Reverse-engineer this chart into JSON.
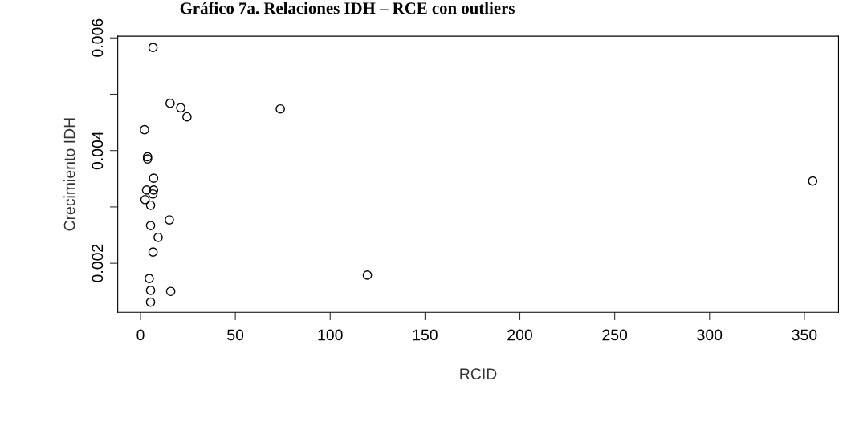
{
  "chart_data": {
    "type": "scatter",
    "title": "Gráfico 7a. Relaciones IDH – RCE con outliers",
    "xlabel": "RCID",
    "ylabel": "Crecimiento IDH",
    "x": [
      6.6,
      15.6,
      21.2,
      24.5,
      73.7,
      2.1,
      3.7,
      3.7,
      6.9,
      3.2,
      6.9,
      6.5,
      2.4,
      5.3,
      15.2,
      5.3,
      9.3,
      6.6,
      4.6,
      5.3,
      15.9,
      5.3,
      119.6,
      354.4
    ],
    "values": [
      0.00583,
      0.00484,
      0.00476,
      0.0046,
      0.00474,
      0.00437,
      0.00389,
      0.00385,
      0.00351,
      0.0033,
      0.0033,
      0.00323,
      0.00313,
      0.00303,
      0.00277,
      0.00267,
      0.00246,
      0.0022,
      0.00173,
      0.00152,
      0.0015,
      0.00131,
      0.00179,
      0.00346
    ],
    "color": "#000000",
    "marker": "circle",
    "xlim": [
      -12,
      368
    ],
    "xticks": [
      0,
      50,
      100,
      150,
      200,
      250,
      300,
      350
    ],
    "ylim": [
      0.00113,
      0.00603
    ],
    "yticks": [
      0.002,
      {
        "value": 0.003,
        "label": null
      },
      0.004,
      {
        "value": 0.005,
        "label": null
      },
      0.006
    ],
    "grid": false
  }
}
